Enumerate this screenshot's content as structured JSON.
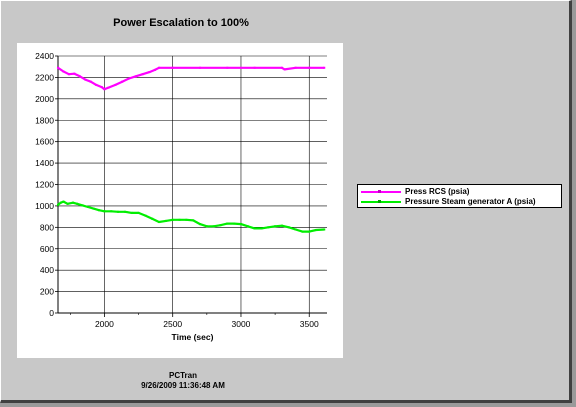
{
  "window": {
    "title": "Power Escalation to 100%",
    "footer_app": "PCTran",
    "footer_timestamp": "9/26/2009 11:36:48 AM"
  },
  "chart_data": {
    "type": "line",
    "title": "Power Escalation to 100%",
    "xlabel": "Time (sec)",
    "ylabel": "",
    "xlim": [
      1660,
      3630
    ],
    "ylim": [
      0,
      2400
    ],
    "x_ticks": [
      2000,
      2500,
      3000,
      3500
    ],
    "x_minor_ticks": [
      1750,
      2250,
      2750,
      3250
    ],
    "y_ticks": [
      0,
      200,
      400,
      600,
      800,
      1000,
      1200,
      1400,
      1600,
      1800,
      2000,
      2200,
      2400
    ],
    "grid": true,
    "legend_position": "right",
    "series": [
      {
        "name": "Press RCS (psia)",
        "color": "#ff00ff",
        "x": [
          1660,
          1700,
          1740,
          1780,
          1820,
          1860,
          1900,
          1940,
          1980,
          2000,
          2030,
          2080,
          2130,
          2180,
          2230,
          2280,
          2330,
          2370,
          2400,
          2500,
          2700,
          2900,
          3100,
          3300,
          3320,
          3400,
          3500,
          3610
        ],
        "y": [
          2290,
          2255,
          2230,
          2235,
          2210,
          2180,
          2160,
          2130,
          2110,
          2090,
          2105,
          2130,
          2160,
          2190,
          2210,
          2230,
          2250,
          2270,
          2290,
          2290,
          2290,
          2290,
          2290,
          2290,
          2275,
          2290,
          2290,
          2290
        ]
      },
      {
        "name": "Pressure Steam generator A (psia)",
        "color": "#00ee00",
        "x": [
          1660,
          1680,
          1700,
          1730,
          1770,
          1800,
          1840,
          1880,
          1920,
          1960,
          2000,
          2050,
          2100,
          2150,
          2200,
          2250,
          2300,
          2350,
          2400,
          2450,
          2500,
          2550,
          2600,
          2650,
          2700,
          2750,
          2800,
          2850,
          2900,
          2950,
          3000,
          3050,
          3100,
          3150,
          3200,
          3250,
          3300,
          3350,
          3400,
          3450,
          3500,
          3550,
          3610
        ],
        "y": [
          1010,
          1030,
          1040,
          1020,
          1030,
          1020,
          1005,
          990,
          975,
          960,
          950,
          950,
          945,
          945,
          935,
          935,
          910,
          880,
          850,
          860,
          870,
          870,
          870,
          865,
          830,
          810,
          810,
          820,
          835,
          835,
          830,
          810,
          790,
          790,
          800,
          810,
          815,
          800,
          780,
          760,
          760,
          775,
          780
        ]
      }
    ]
  }
}
